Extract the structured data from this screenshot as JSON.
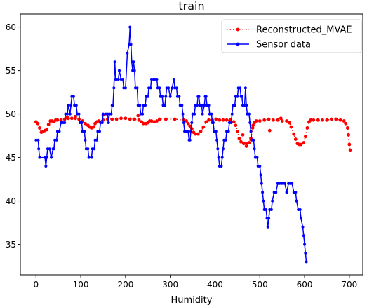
{
  "chart_data": {
    "type": "line",
    "title": "train",
    "xlabel": "Humidity",
    "ylabel": "",
    "xlim": [
      -35,
      730
    ],
    "ylim": [
      31.5,
      61.5
    ],
    "xticks": [
      0,
      100,
      200,
      300,
      400,
      500,
      600,
      700
    ],
    "yticks": [
      35,
      40,
      45,
      50,
      55,
      60
    ],
    "grid": false,
    "legend_position": "top-right",
    "series": [
      {
        "name": "Reconstructed_MVAE",
        "color": "#ff0000",
        "line_style": "dotted",
        "marker": "circle",
        "points": [
          [
            0,
            49.1
          ],
          [
            4,
            48.9
          ],
          [
            8,
            48.4
          ],
          [
            12,
            47.9
          ],
          [
            16,
            48.0
          ],
          [
            20,
            48.1
          ],
          [
            24,
            48.2
          ],
          [
            28,
            48.8
          ],
          [
            32,
            49.2
          ],
          [
            36,
            49.2
          ],
          [
            40,
            49.1
          ],
          [
            44,
            49.3
          ],
          [
            48,
            49.3
          ],
          [
            56,
            49.3
          ],
          [
            64,
            49.4
          ],
          [
            72,
            49.5
          ],
          [
            80,
            49.5
          ],
          [
            88,
            49.5
          ],
          [
            96,
            49.4
          ],
          [
            104,
            49.2
          ],
          [
            110,
            48.9
          ],
          [
            116,
            48.7
          ],
          [
            120,
            48.5
          ],
          [
            124,
            48.4
          ],
          [
            128,
            48.5
          ],
          [
            132,
            48.9
          ],
          [
            136,
            49.1
          ],
          [
            140,
            49.2
          ],
          [
            150,
            49.3
          ],
          [
            160,
            49.4
          ],
          [
            170,
            49.4
          ],
          [
            180,
            49.4
          ],
          [
            190,
            49.5
          ],
          [
            200,
            49.5
          ],
          [
            210,
            49.4
          ],
          [
            220,
            49.4
          ],
          [
            230,
            49.3
          ],
          [
            236,
            49.1
          ],
          [
            240,
            48.9
          ],
          [
            246,
            48.9
          ],
          [
            250,
            49.0
          ],
          [
            254,
            49.2
          ],
          [
            258,
            49.2
          ],
          [
            264,
            49.1
          ],
          [
            270,
            49.2
          ],
          [
            276,
            49.4
          ],
          [
            290,
            49.4
          ],
          [
            310,
            49.4
          ],
          [
            330,
            49.3
          ],
          [
            336,
            49.2
          ],
          [
            340,
            48.9
          ],
          [
            344,
            48.6
          ],
          [
            348,
            48.3
          ],
          [
            352,
            47.9
          ],
          [
            356,
            47.7
          ],
          [
            362,
            47.7
          ],
          [
            368,
            48.0
          ],
          [
            374,
            48.5
          ],
          [
            380,
            49.1
          ],
          [
            386,
            49.3
          ],
          [
            394,
            49.3
          ],
          [
            402,
            49.4
          ],
          [
            410,
            49.3
          ],
          [
            418,
            49.3
          ],
          [
            426,
            49.3
          ],
          [
            434,
            49.3
          ],
          [
            442,
            49.1
          ],
          [
            446,
            48.7
          ],
          [
            450,
            48.0
          ],
          [
            454,
            47.2
          ],
          [
            458,
            46.8
          ],
          [
            464,
            46.6
          ],
          [
            470,
            46.6
          ],
          [
            476,
            46.7
          ],
          [
            480,
            47.2
          ],
          [
            484,
            48.4
          ],
          [
            488,
            49.0
          ],
          [
            492,
            49.2
          ],
          [
            500,
            49.2
          ],
          [
            510,
            49.3
          ],
          [
            520,
            49.4
          ],
          [
            530,
            49.3
          ],
          [
            540,
            49.3
          ],
          [
            550,
            49.2
          ],
          [
            560,
            49.2
          ],
          [
            566,
            49.0
          ],
          [
            570,
            48.5
          ],
          [
            576,
            47.7
          ],
          [
            580,
            47.1
          ],
          [
            584,
            46.6
          ],
          [
            588,
            46.5
          ],
          [
            592,
            46.5
          ],
          [
            598,
            46.7
          ],
          [
            602,
            47.4
          ],
          [
            606,
            48.4
          ],
          [
            610,
            49.1
          ],
          [
            614,
            49.3
          ],
          [
            620,
            49.3
          ],
          [
            630,
            49.3
          ],
          [
            640,
            49.3
          ],
          [
            650,
            49.3
          ],
          [
            660,
            49.4
          ],
          [
            670,
            49.4
          ],
          [
            680,
            49.3
          ],
          [
            688,
            49.2
          ],
          [
            692,
            48.9
          ],
          [
            696,
            48.4
          ],
          [
            698,
            47.6
          ],
          [
            700,
            46.5
          ],
          [
            702,
            45.8
          ]
        ],
        "outliers": [
          [
            70,
            49.6
          ],
          [
            88,
            49.7
          ],
          [
            150,
            49.9
          ],
          [
            228,
            49.8
          ],
          [
            470,
            46.3
          ],
          [
            485,
            48.7
          ],
          [
            522,
            48.1
          ],
          [
            547,
            49.5
          ],
          [
            462,
            47.6
          ]
        ]
      },
      {
        "name": "Sensor data",
        "color": "#0000ff",
        "line_style": "solid",
        "marker": "circle",
        "points": [
          [
            0,
            47
          ],
          [
            5,
            47
          ],
          [
            6,
            46
          ],
          [
            8,
            45
          ],
          [
            20,
            45
          ],
          [
            22,
            44
          ],
          [
            24,
            45
          ],
          [
            26,
            46
          ],
          [
            30,
            46
          ],
          [
            34,
            45
          ],
          [
            38,
            46
          ],
          [
            40,
            46
          ],
          [
            42,
            47
          ],
          [
            46,
            47
          ],
          [
            48,
            48
          ],
          [
            52,
            48
          ],
          [
            56,
            49
          ],
          [
            60,
            49
          ],
          [
            64,
            49
          ],
          [
            66,
            50
          ],
          [
            70,
            50
          ],
          [
            72,
            51
          ],
          [
            76,
            50
          ],
          [
            78,
            51
          ],
          [
            80,
            52
          ],
          [
            84,
            52
          ],
          [
            86,
            51
          ],
          [
            90,
            51
          ],
          [
            92,
            50
          ],
          [
            96,
            50
          ],
          [
            98,
            49
          ],
          [
            102,
            49
          ],
          [
            104,
            48
          ],
          [
            108,
            48
          ],
          [
            110,
            47
          ],
          [
            112,
            46
          ],
          [
            116,
            46
          ],
          [
            118,
            45
          ],
          [
            124,
            45
          ],
          [
            126,
            46
          ],
          [
            130,
            46
          ],
          [
            132,
            47
          ],
          [
            136,
            47
          ],
          [
            138,
            48
          ],
          [
            142,
            48
          ],
          [
            144,
            49
          ],
          [
            148,
            49
          ],
          [
            150,
            50
          ],
          [
            156,
            50
          ],
          [
            160,
            50
          ],
          [
            162,
            49
          ],
          [
            164,
            50
          ],
          [
            168,
            50
          ],
          [
            170,
            51
          ],
          [
            172,
            51
          ],
          [
            174,
            53
          ],
          [
            176,
            56
          ],
          [
            178,
            54
          ],
          [
            180,
            54
          ],
          [
            184,
            54
          ],
          [
            186,
            55
          ],
          [
            190,
            54
          ],
          [
            194,
            54
          ],
          [
            196,
            53
          ],
          [
            200,
            53
          ],
          [
            204,
            57
          ],
          [
            208,
            58
          ],
          [
            210,
            60
          ],
          [
            212,
            58
          ],
          [
            214,
            56
          ],
          [
            216,
            55
          ],
          [
            218,
            56
          ],
          [
            220,
            55
          ],
          [
            222,
            53
          ],
          [
            226,
            53
          ],
          [
            228,
            51
          ],
          [
            232,
            51
          ],
          [
            234,
            50
          ],
          [
            238,
            50
          ],
          [
            240,
            51
          ],
          [
            244,
            51
          ],
          [
            246,
            52
          ],
          [
            250,
            52
          ],
          [
            252,
            53
          ],
          [
            256,
            53
          ],
          [
            258,
            54
          ],
          [
            262,
            54
          ],
          [
            266,
            54
          ],
          [
            270,
            54
          ],
          [
            272,
            53
          ],
          [
            276,
            53
          ],
          [
            278,
            52
          ],
          [
            282,
            52
          ],
          [
            284,
            51
          ],
          [
            288,
            51
          ],
          [
            290,
            52
          ],
          [
            292,
            53
          ],
          [
            296,
            53
          ],
          [
            300,
            52
          ],
          [
            304,
            53
          ],
          [
            308,
            54
          ],
          [
            310,
            53
          ],
          [
            314,
            53
          ],
          [
            316,
            52
          ],
          [
            320,
            52
          ],
          [
            322,
            51
          ],
          [
            326,
            51
          ],
          [
            328,
            50
          ],
          [
            330,
            49
          ],
          [
            332,
            48
          ],
          [
            336,
            48
          ],
          [
            340,
            48
          ],
          [
            342,
            47
          ],
          [
            344,
            47
          ],
          [
            346,
            48
          ],
          [
            348,
            49
          ],
          [
            350,
            50
          ],
          [
            354,
            50
          ],
          [
            356,
            51
          ],
          [
            360,
            51
          ],
          [
            362,
            52
          ],
          [
            364,
            52
          ],
          [
            366,
            51
          ],
          [
            370,
            51
          ],
          [
            372,
            50
          ],
          [
            376,
            51
          ],
          [
            378,
            52
          ],
          [
            380,
            52
          ],
          [
            382,
            51
          ],
          [
            386,
            51
          ],
          [
            388,
            50
          ],
          [
            392,
            50
          ],
          [
            394,
            49
          ],
          [
            396,
            49
          ],
          [
            398,
            48
          ],
          [
            402,
            48
          ],
          [
            404,
            47
          ],
          [
            406,
            46
          ],
          [
            408,
            45
          ],
          [
            410,
            44
          ],
          [
            414,
            44
          ],
          [
            416,
            45
          ],
          [
            418,
            46
          ],
          [
            420,
            47
          ],
          [
            424,
            47
          ],
          [
            426,
            48
          ],
          [
            430,
            48
          ],
          [
            432,
            49
          ],
          [
            436,
            49
          ],
          [
            438,
            50
          ],
          [
            440,
            51
          ],
          [
            444,
            51
          ],
          [
            446,
            52
          ],
          [
            450,
            52
          ],
          [
            452,
            53
          ],
          [
            456,
            53
          ],
          [
            458,
            52
          ],
          [
            460,
            52
          ],
          [
            462,
            51
          ],
          [
            466,
            51
          ],
          [
            468,
            53
          ],
          [
            470,
            51
          ],
          [
            472,
            50
          ],
          [
            476,
            50
          ],
          [
            478,
            49
          ],
          [
            480,
            48
          ],
          [
            482,
            47
          ],
          [
            486,
            47
          ],
          [
            488,
            46
          ],
          [
            490,
            45
          ],
          [
            494,
            45
          ],
          [
            496,
            44
          ],
          [
            500,
            44
          ],
          [
            502,
            43
          ],
          [
            504,
            42
          ],
          [
            506,
            41
          ],
          [
            508,
            40
          ],
          [
            510,
            39
          ],
          [
            514,
            39
          ],
          [
            516,
            38
          ],
          [
            518,
            37
          ],
          [
            520,
            38
          ],
          [
            522,
            39
          ],
          [
            526,
            39
          ],
          [
            528,
            40
          ],
          [
            532,
            41
          ],
          [
            536,
            41
          ],
          [
            540,
            42
          ],
          [
            544,
            42
          ],
          [
            548,
            42
          ],
          [
            552,
            42
          ],
          [
            556,
            42
          ],
          [
            560,
            41
          ],
          [
            564,
            42
          ],
          [
            568,
            42
          ],
          [
            572,
            42
          ],
          [
            576,
            41
          ],
          [
            580,
            41
          ],
          [
            582,
            40
          ],
          [
            586,
            39
          ],
          [
            590,
            39
          ],
          [
            592,
            38
          ],
          [
            596,
            37
          ],
          [
            598,
            36
          ],
          [
            600,
            35
          ],
          [
            602,
            34
          ],
          [
            604,
            33
          ]
        ]
      }
    ]
  }
}
